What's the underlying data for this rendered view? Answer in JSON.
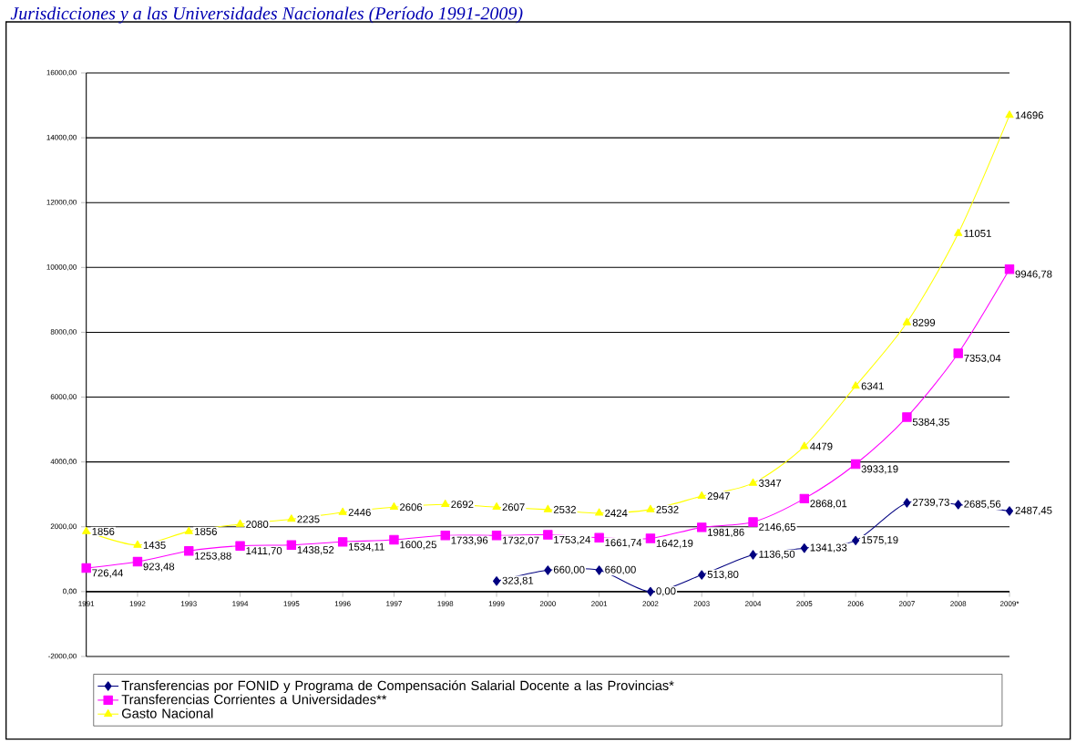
{
  "chart_data": {
    "type": "line",
    "title": "Jurisdicciones y a las Universidades Nacionales (Período 1991-2009)",
    "categories": [
      "1991",
      "1992",
      "1993",
      "1994",
      "1995",
      "1996",
      "1997",
      "1998",
      "1999",
      "2000",
      "2001",
      "2002",
      "2003",
      "2004",
      "2005",
      "2006",
      "2007",
      "2008",
      "2009*"
    ],
    "ylim": [
      -2000,
      16000
    ],
    "yticks": [
      {
        "value": -2000,
        "label": "-2000,00"
      },
      {
        "value": 0,
        "label": "0,00"
      },
      {
        "value": 2000,
        "label": "2000,00"
      },
      {
        "value": 4000,
        "label": "4000,00"
      },
      {
        "value": 6000,
        "label": "6000,00"
      },
      {
        "value": 8000,
        "label": "8000,00"
      },
      {
        "value": 10000,
        "label": "10000,00"
      },
      {
        "value": 12000,
        "label": "12000,00"
      },
      {
        "value": 14000,
        "label": "14000,00"
      },
      {
        "value": 16000,
        "label": "16000,00"
      }
    ],
    "grid": "y",
    "legend": "bottom",
    "series": [
      {
        "name": "Transferencias por FONID y Programa de Compensación Salarial Docente a las Provincias*",
        "color": "#000080",
        "marker": "diamond",
        "values": [
          null,
          null,
          null,
          null,
          null,
          null,
          null,
          null,
          323.81,
          660.0,
          660.0,
          0.0,
          513.8,
          1136.5,
          1341.33,
          1575.19,
          2739.73,
          2685.56,
          2487.45
        ],
        "value_labels": [
          null,
          null,
          null,
          null,
          null,
          null,
          null,
          null,
          "323,81",
          "660,00",
          "660,00",
          "0,00",
          "513,80",
          "1136,50",
          "1341,33",
          "1575,19",
          "2739,73",
          "2685,56",
          "2487,45"
        ]
      },
      {
        "name": "Transferencias Corrientes a Universidades**",
        "color": "#ff00ff",
        "marker": "square",
        "values": [
          726.44,
          923.48,
          1253.88,
          1411.7,
          1438.52,
          1534.11,
          1600.25,
          1733.96,
          1732.07,
          1753.24,
          1661.74,
          1642.19,
          1981.86,
          2146.65,
          2868.01,
          3933.19,
          5384.35,
          7353.04,
          9946.78
        ],
        "value_labels": [
          "726,44",
          "923,48",
          "1253,88",
          "1411,70",
          "1438,52",
          "1534,11",
          "1600,25",
          "1733,96",
          "1732,07",
          "1753,24",
          "1661,74",
          "1642,19",
          "1981,86",
          "2146,65",
          "2868,01",
          "3933,19",
          "5384,35",
          "7353,04",
          "9946,78"
        ]
      },
      {
        "name": "Gasto Nacional",
        "color": "#ffff00",
        "marker": "triangle",
        "values": [
          1856,
          1435,
          1856,
          2080,
          2235,
          2446,
          2606,
          2692,
          2607,
          2532,
          2424,
          2532,
          2947,
          3347,
          4479,
          6341,
          8299,
          11051,
          14696
        ],
        "value_labels": [
          "1856",
          "1435",
          "1856",
          "2080",
          "2235",
          "2446",
          "2606",
          "2692",
          "2607",
          "2532",
          "2424",
          "2532",
          "2947",
          "3347",
          "4479",
          "6341",
          "8299",
          "11051",
          "14696"
        ]
      }
    ]
  }
}
